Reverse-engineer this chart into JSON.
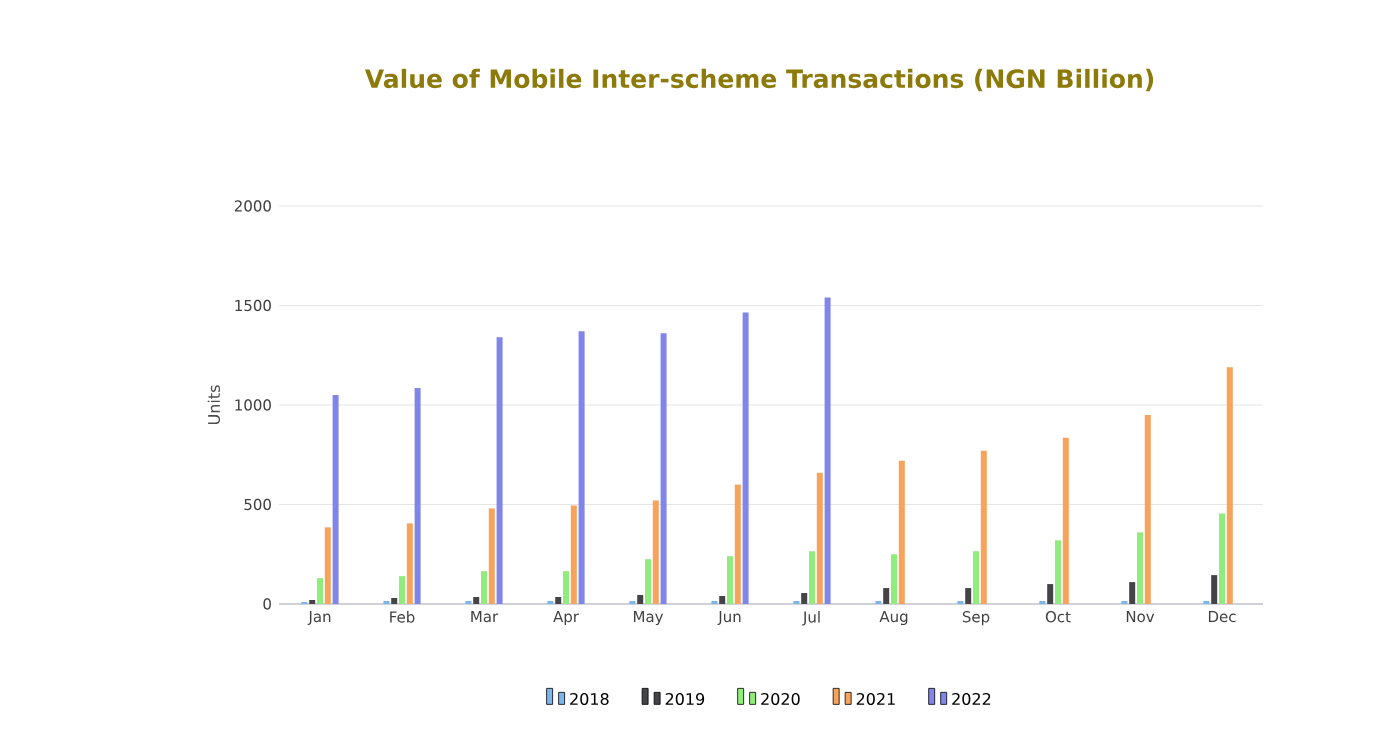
{
  "chart_data": {
    "type": "bar",
    "title": "Value of Mobile Inter-scheme Transactions (NGN Billion)",
    "ylabel": "Units",
    "categories": [
      "Jan",
      "Feb",
      "Mar",
      "Apr",
      "May",
      "Jun",
      "Jul",
      "Aug",
      "Sep",
      "Oct",
      "Nov",
      "Dec"
    ],
    "series": [
      {
        "name": "2018",
        "color": "#7cb5ec",
        "values": [
          10,
          15,
          15,
          15,
          15,
          15,
          15,
          15,
          15,
          15,
          15,
          15
        ]
      },
      {
        "name": "2019",
        "color": "#434348",
        "values": [
          20,
          30,
          35,
          35,
          45,
          40,
          55,
          80,
          80,
          100,
          110,
          145
        ]
      },
      {
        "name": "2020",
        "color": "#90ed7d",
        "values": [
          130,
          140,
          165,
          165,
          225,
          240,
          265,
          250,
          265,
          320,
          360,
          455
        ]
      },
      {
        "name": "2021",
        "color": "#f7a35c",
        "values": [
          385,
          405,
          480,
          495,
          520,
          600,
          660,
          720,
          770,
          835,
          950,
          1190
        ]
      },
      {
        "name": "2022",
        "color": "#8085e9",
        "values": [
          1050,
          1085,
          1340,
          1370,
          1360,
          1465,
          1540,
          null,
          null,
          null,
          null,
          null
        ]
      }
    ],
    "ylim": [
      0,
      2000
    ],
    "yticks": [
      0,
      500,
      1000,
      1500,
      2000
    ],
    "grid": "y",
    "legend": "bottom"
  }
}
